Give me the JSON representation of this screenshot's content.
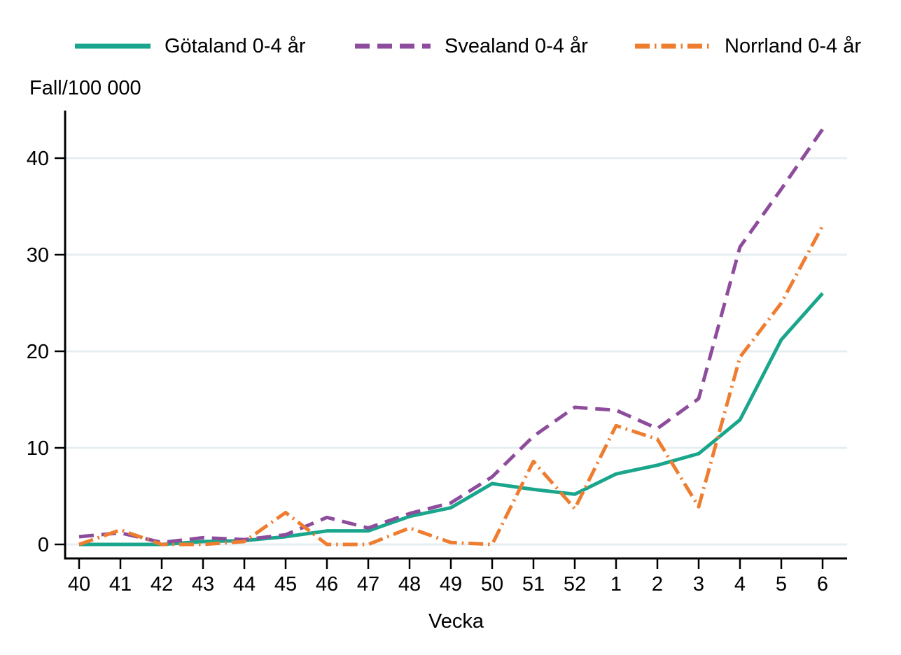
{
  "chart_data": {
    "type": "line",
    "title": "",
    "ylabel": "Fall/100 000",
    "xlabel": "Vecka",
    "categories": [
      "40",
      "41",
      "42",
      "43",
      "44",
      "45",
      "46",
      "47",
      "48",
      "49",
      "50",
      "51",
      "52",
      "1",
      "2",
      "3",
      "4",
      "5",
      "6"
    ],
    "yticks": [
      0,
      10,
      20,
      30,
      40
    ],
    "ylim": [
      0,
      45
    ],
    "grid": true,
    "legend_position": "top",
    "colors": {
      "gridline": "#e7eef2",
      "axis": "#000000",
      "text": "#000000",
      "background": "#ffffff"
    },
    "series": [
      {
        "name": "Götaland 0-4 år",
        "color": "#1aa68c",
        "dash": "solid",
        "values": [
          0,
          0,
          0,
          0.3,
          0.4,
          0.8,
          1.4,
          1.4,
          2.9,
          3.8,
          6.3,
          5.7,
          5.2,
          7.3,
          8.2,
          9.4,
          12.9,
          21.2,
          26
        ]
      },
      {
        "name": "Svealand 0-4 år",
        "color": "#8e4d9c",
        "dash": "dash",
        "values": [
          0.8,
          1.2,
          0.2,
          0.7,
          0.5,
          1.0,
          2.8,
          1.7,
          3.2,
          4.3,
          7.0,
          11.2,
          14.2,
          13.9,
          12.0,
          15.1,
          30.8,
          36.8,
          43
        ]
      },
      {
        "name": "Norrland 0-4 år",
        "color": "#ee7d30",
        "dash": "dash-dot",
        "values": [
          0,
          1.5,
          0,
          0,
          0.3,
          3.3,
          0,
          0,
          1.7,
          0.2,
          0,
          8.6,
          3.7,
          12.3,
          10.9,
          3.9,
          19.4,
          25,
          33
        ]
      }
    ]
  }
}
